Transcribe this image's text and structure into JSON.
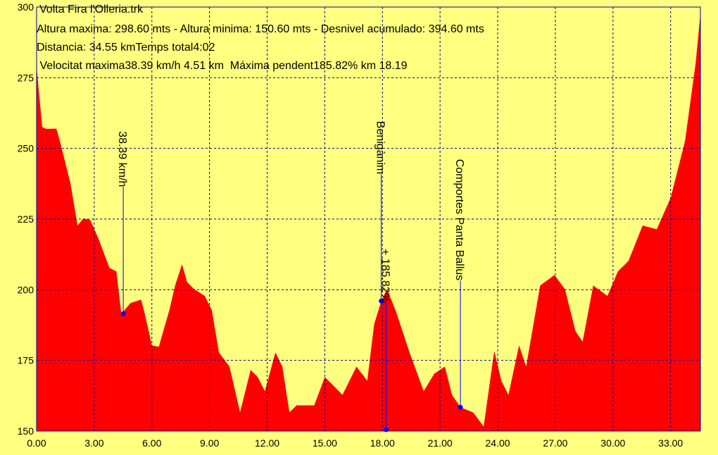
{
  "chart_data": {
    "type": "area",
    "title": "Volta Fira l'Olleria.trk",
    "subtitle_lines": [
      "Altura maxima: 298.60 mts - Altura minima: 150.60 mts - Desnivel acumulado: 394.60 mts",
      "Distancia: 34.55 kmTemps total4:02",
      " Velocitat maxima38.39 km/h 4.51 km  Máxima pendent185.82% km 18.19"
    ],
    "color": "#ff0000",
    "grid": true,
    "xlim": [
      0,
      34.55
    ],
    "ylim": [
      150,
      300
    ],
    "xticks": [
      {
        "value": 0,
        "label": "0.00"
      },
      {
        "value": 3,
        "label": "3.00"
      },
      {
        "value": 6,
        "label": "6.00"
      },
      {
        "value": 9,
        "label": "9.00"
      },
      {
        "value": 12,
        "label": "12.00"
      },
      {
        "value": 15,
        "label": "15.00"
      },
      {
        "value": 18,
        "label": "18.00"
      },
      {
        "value": 21,
        "label": "21.00"
      },
      {
        "value": 24,
        "label": "24.00"
      },
      {
        "value": 27,
        "label": "27.00"
      },
      {
        "value": 30,
        "label": "30.00"
      },
      {
        "value": 33,
        "label": "33.00"
      }
    ],
    "yticks": [
      150,
      175,
      200,
      225,
      250,
      275,
      300
    ],
    "x": [
      0,
      0.29,
      0.48,
      1.03,
      1.21,
      1.76,
      2.13,
      2.43,
      2.79,
      3.24,
      3.79,
      4.15,
      4.41,
      4.89,
      5.44,
      5.63,
      6.0,
      6.36,
      6.91,
      7.21,
      7.57,
      7.83,
      8.2,
      8.75,
      9.12,
      9.49,
      10.04,
      10.59,
      11.14,
      11.51,
      11.88,
      12.43,
      12.79,
      13.16,
      13.53,
      14.45,
      15.0,
      15.37,
      15.92,
      16.65,
      17.21,
      17.57,
      17.94,
      18.24,
      18.68,
      19.41,
      20.15,
      20.7,
      21.25,
      21.62,
      22.06,
      22.72,
      23.27,
      23.82,
      24.19,
      24.56,
      25.11,
      25.48,
      26.21,
      26.95,
      27.5,
      28.05,
      28.42,
      28.97,
      29.71,
      30.26,
      30.81,
      31.54,
      32.28,
      33.01,
      33.75,
      34.3,
      34.55
    ],
    "values": [
      278.8,
      257.6,
      256.9,
      257,
      252.6,
      237.7,
      222.7,
      225.2,
      224.7,
      217.7,
      207.7,
      206.5,
      191.5,
      195.3,
      196.5,
      191.5,
      180.3,
      179.8,
      192.8,
      201.5,
      209,
      202.7,
      200.2,
      197.8,
      192.8,
      177.8,
      172.8,
      156.6,
      171.6,
      169.1,
      164.1,
      177.8,
      172.8,
      156.6,
      159.1,
      159.1,
      169.1,
      166.6,
      162.8,
      172.8,
      167.8,
      187.8,
      196,
      200.2,
      192.8,
      177.8,
      164.1,
      170.3,
      172.8,
      162.8,
      158.4,
      156.6,
      151.6,
      178.3,
      167.8,
      162.8,
      180.3,
      172.8,
      201.5,
      205.2,
      200.2,
      185.3,
      181.6,
      201.5,
      197.8,
      206.5,
      210.2,
      222.7,
      221.4,
      232.7,
      252.6,
      280,
      297.5
    ],
    "annotations": [
      {
        "text": "38.39 km/h",
        "x": 4.51,
        "y": 191.5
      },
      {
        "text": "Benigànim",
        "x": 17.94,
        "y": 196
      },
      {
        "text": "+ 185.82%",
        "x": 18.19,
        "y": 150.5
      },
      {
        "text": "Comportes Panta Ballus",
        "x": 22.06,
        "y": 158.4
      }
    ]
  }
}
